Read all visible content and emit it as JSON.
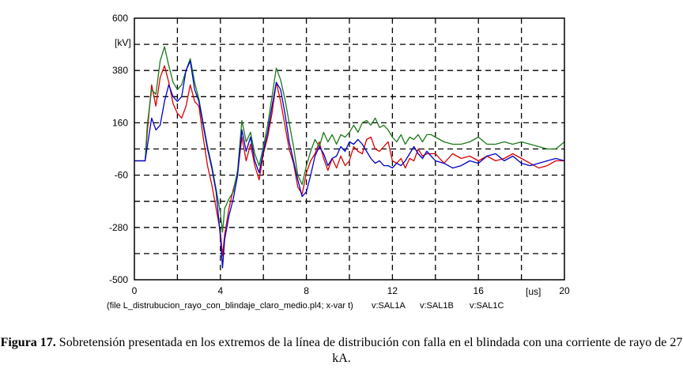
{
  "chart_data": {
    "type": "line",
    "x_unit": "[us]",
    "y_unit": "[kV]",
    "xlim": [
      0,
      20
    ],
    "ylim": [
      -500,
      600
    ],
    "x_ticks": [
      0,
      4,
      8,
      12,
      16,
      20
    ],
    "y_ticks": [
      600,
      380,
      160,
      -60,
      -280,
      -500
    ],
    "grid": true,
    "footer_file": "(file L_distrubucion_rayo_con_blindaje_claro_medio.pl4; x-var t)",
    "series": [
      {
        "name": "v:SAL1A",
        "color": "#dd0000",
        "x": [
          0,
          0.5,
          0.6,
          0.8,
          1.0,
          1.2,
          1.4,
          1.6,
          1.8,
          2.0,
          2.2,
          2.4,
          2.6,
          2.8,
          3.0,
          3.2,
          3.4,
          3.6,
          3.8,
          4.0,
          4.1,
          4.2,
          4.4,
          4.6,
          4.8,
          5.0,
          5.2,
          5.4,
          5.6,
          5.8,
          6.0,
          6.2,
          6.4,
          6.6,
          6.8,
          7.0,
          7.2,
          7.4,
          7.6,
          7.8,
          8.0,
          8.2,
          8.4,
          8.6,
          8.8,
          9.0,
          9.2,
          9.4,
          9.6,
          9.8,
          10.0,
          10.2,
          10.4,
          10.6,
          10.8,
          11.0,
          11.2,
          11.4,
          11.6,
          11.8,
          12.0,
          12.2,
          12.4,
          12.6,
          12.8,
          13.0,
          13.2,
          13.4,
          13.6,
          13.8,
          14.0,
          14.4,
          14.8,
          15.2,
          15.6,
          16.0,
          16.4,
          16.8,
          17.2,
          17.6,
          18.0,
          18.4,
          18.8,
          19.2,
          19.6,
          20.0
        ],
        "values": [
          0,
          0,
          120,
          320,
          230,
          350,
          400,
          330,
          240,
          200,
          180,
          230,
          320,
          250,
          230,
          100,
          -20,
          -100,
          -200,
          -300,
          -400,
          -310,
          -200,
          -120,
          -50,
          100,
          0,
          70,
          -20,
          -80,
          30,
          100,
          200,
          330,
          250,
          150,
          50,
          -10,
          -110,
          -140,
          -50,
          0,
          30,
          80,
          10,
          -40,
          10,
          -30,
          20,
          -20,
          0,
          60,
          40,
          30,
          90,
          100,
          50,
          40,
          60,
          80,
          0,
          -10,
          10,
          -30,
          10,
          0,
          50,
          20,
          30,
          30,
          30,
          -10,
          30,
          10,
          20,
          0,
          20,
          0,
          10,
          30,
          10,
          -10,
          -30,
          -20,
          0,
          0
        ]
      },
      {
        "name": "v:SAL1B",
        "color": "#1a7a1a",
        "x": [
          0,
          0.5,
          0.6,
          0.8,
          1.0,
          1.2,
          1.4,
          1.6,
          1.8,
          2.0,
          2.2,
          2.4,
          2.6,
          2.8,
          3.0,
          3.2,
          3.4,
          3.6,
          3.8,
          4.0,
          4.1,
          4.2,
          4.4,
          4.6,
          4.8,
          5.0,
          5.2,
          5.4,
          5.6,
          5.8,
          6.0,
          6.2,
          6.4,
          6.6,
          6.8,
          7.0,
          7.2,
          7.4,
          7.6,
          7.8,
          8.0,
          8.2,
          8.4,
          8.6,
          8.8,
          9.0,
          9.2,
          9.4,
          9.6,
          9.8,
          10.0,
          10.2,
          10.4,
          10.6,
          10.8,
          11.0,
          11.2,
          11.4,
          11.6,
          11.8,
          12.0,
          12.2,
          12.4,
          12.6,
          12.8,
          13.0,
          13.2,
          13.4,
          13.6,
          13.8,
          14.0,
          14.4,
          14.8,
          15.2,
          15.6,
          16.0,
          16.4,
          16.8,
          17.2,
          17.6,
          18.0,
          18.4,
          18.8,
          19.2,
          19.6,
          20.0
        ],
        "values": [
          0,
          0,
          150,
          300,
          280,
          420,
          480,
          400,
          330,
          300,
          320,
          380,
          430,
          330,
          260,
          160,
          60,
          -20,
          -120,
          -220,
          -300,
          -200,
          -160,
          -130,
          -40,
          170,
          80,
          120,
          30,
          -20,
          60,
          150,
          270,
          390,
          340,
          260,
          160,
          60,
          -60,
          -100,
          -20,
          40,
          90,
          60,
          120,
          80,
          110,
          70,
          110,
          100,
          120,
          150,
          120,
          160,
          170,
          150,
          180,
          140,
          150,
          130,
          100,
          80,
          110,
          70,
          100,
          90,
          110,
          80,
          110,
          110,
          100,
          80,
          70,
          70,
          80,
          100,
          70,
          70,
          80,
          70,
          80,
          70,
          60,
          50,
          50,
          80
        ]
      },
      {
        "name": "v:SAL1C",
        "color": "#0000cc",
        "x": [
          0,
          0.5,
          0.6,
          0.8,
          1.0,
          1.2,
          1.4,
          1.6,
          1.8,
          2.0,
          2.2,
          2.4,
          2.6,
          2.8,
          3.0,
          3.2,
          3.4,
          3.6,
          3.8,
          4.0,
          4.1,
          4.2,
          4.4,
          4.6,
          4.8,
          5.0,
          5.2,
          5.4,
          5.6,
          5.8,
          6.0,
          6.2,
          6.4,
          6.6,
          6.8,
          7.0,
          7.2,
          7.4,
          7.6,
          7.8,
          8.0,
          8.2,
          8.4,
          8.6,
          8.8,
          9.0,
          9.2,
          9.4,
          9.6,
          9.8,
          10.0,
          10.2,
          10.4,
          10.6,
          10.8,
          11.0,
          11.2,
          11.4,
          11.6,
          11.8,
          12.0,
          12.2,
          12.4,
          12.6,
          12.8,
          13.0,
          13.2,
          13.4,
          13.6,
          13.8,
          14.0,
          14.4,
          14.8,
          15.2,
          15.6,
          16.0,
          16.4,
          16.8,
          17.2,
          17.6,
          18.0,
          18.4,
          18.8,
          19.2,
          19.6,
          20.0
        ],
        "values": [
          0,
          0,
          60,
          180,
          130,
          150,
          250,
          320,
          270,
          250,
          270,
          380,
          420,
          300,
          250,
          150,
          50,
          -30,
          -130,
          -320,
          -450,
          -330,
          -230,
          -160,
          -60,
          130,
          40,
          100,
          0,
          -50,
          40,
          120,
          230,
          330,
          300,
          200,
          80,
          0,
          -80,
          -150,
          -130,
          -60,
          20,
          60,
          30,
          -20,
          10,
          20,
          60,
          40,
          80,
          70,
          90,
          70,
          40,
          10,
          -10,
          0,
          -20,
          -20,
          -30,
          -10,
          -20,
          0,
          30,
          60,
          30,
          10,
          40,
          20,
          0,
          -10,
          -30,
          -20,
          0,
          -10,
          20,
          30,
          0,
          20,
          -10,
          -20,
          -10,
          0,
          10,
          0
        ]
      }
    ]
  },
  "caption": {
    "label": "Figura 17.",
    "text": "Sobretensión presentada en los extremos de la línea de distribución con falla en el blindada con una corriente de rayo de 27 kA."
  }
}
